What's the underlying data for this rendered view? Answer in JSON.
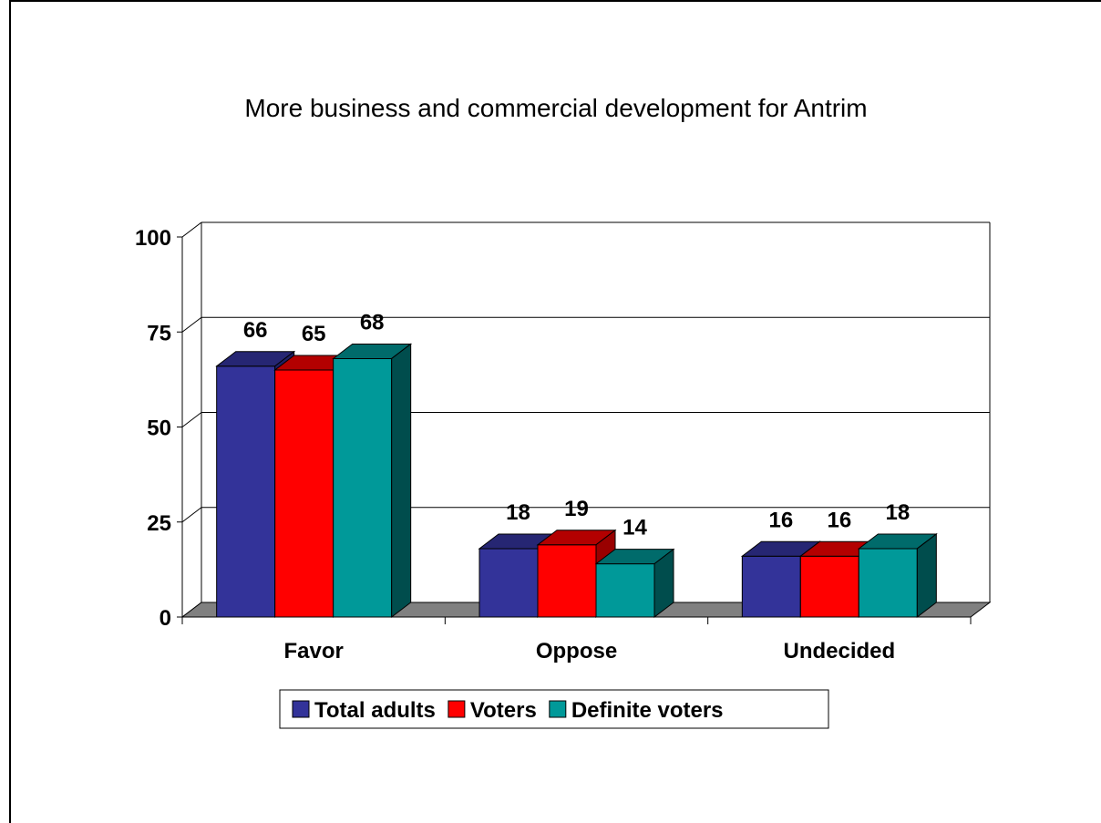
{
  "chart_data": {
    "type": "bar",
    "title": "More business and commercial development for Antrim",
    "xlabel": "",
    "ylabel": "",
    "categories": [
      "Favor",
      "Oppose",
      "Undecided"
    ],
    "series": [
      {
        "name": "Total adults",
        "values": [
          66,
          18,
          16
        ],
        "color": "#333399",
        "side": "#1f1f66",
        "top": "#262673"
      },
      {
        "name": "Voters",
        "values": [
          65,
          19,
          16
        ],
        "color": "#ff0000",
        "side": "#990000",
        "top": "#b30000"
      },
      {
        "name": "Definite voters",
        "values": [
          68,
          14,
          18
        ],
        "color": "#009999",
        "side": "#004d4d",
        "top": "#006b6b"
      }
    ],
    "ylim": [
      0,
      100
    ],
    "yticks": [
      0,
      25,
      50,
      75,
      100
    ],
    "grid": true,
    "legend": "bottom",
    "style": "3d-clustered-column"
  }
}
